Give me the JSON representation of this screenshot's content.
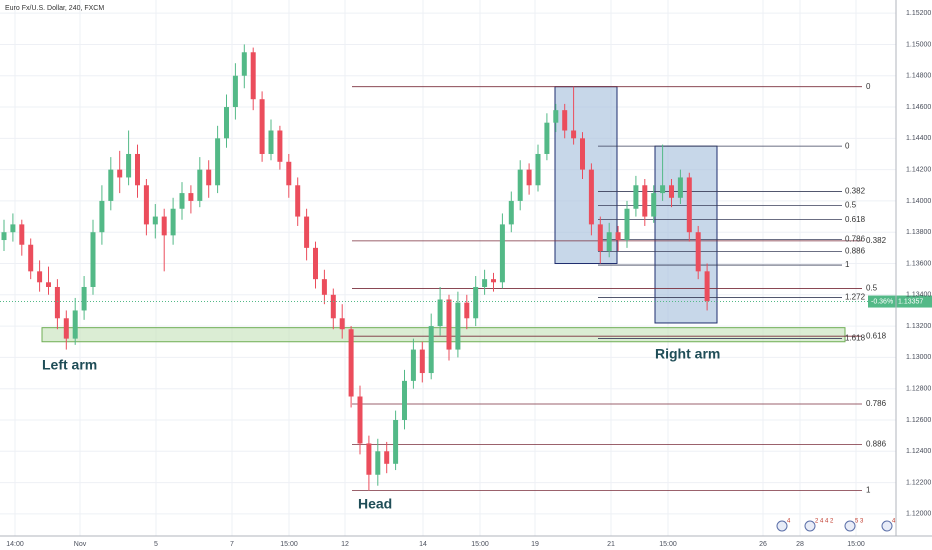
{
  "chart_data": {
    "type": "candlestick",
    "title": "Euro Fx/U.S. Dollar, 240, FXCM",
    "ylim": [
      1.11865,
      1.15284
    ],
    "yticks": [
      {
        "value": 1.12,
        "label": "1.12000"
      },
      {
        "value": 1.122,
        "label": "1.12200"
      },
      {
        "value": 1.124,
        "label": "1.12400"
      },
      {
        "value": 1.126,
        "label": "1.12600"
      },
      {
        "value": 1.128,
        "label": "1.12800"
      },
      {
        "value": 1.13,
        "label": "1.13000"
      },
      {
        "value": 1.132,
        "label": "1.13200"
      },
      {
        "value": 1.134,
        "label": "1.13400"
      },
      {
        "value": 1.136,
        "label": "1.13600"
      },
      {
        "value": 1.138,
        "label": "1.13800"
      },
      {
        "value": 1.14,
        "label": "1.14000"
      },
      {
        "value": 1.142,
        "label": "1.14200"
      },
      {
        "value": 1.144,
        "label": "1.14400"
      },
      {
        "value": 1.146,
        "label": "1.14600"
      },
      {
        "value": 1.148,
        "label": "1.14800"
      },
      {
        "value": 1.15,
        "label": "1.15000"
      },
      {
        "value": 1.152,
        "label": "1.15200"
      }
    ],
    "xtick_labels": [
      "14:00",
      "Nov",
      "5",
      "7",
      "15:00",
      "12",
      "14",
      "15:00",
      "19",
      "21",
      "15:00",
      "26",
      "28",
      "15:00"
    ],
    "grid": true,
    "up_color": "#53b987",
    "down_color": "#eb4d5c",
    "ohlc": [
      [
        1.1375,
        1.1388,
        1.1368,
        1.138
      ],
      [
        1.138,
        1.1392,
        1.1374,
        1.1385
      ],
      [
        1.1385,
        1.1388,
        1.1365,
        1.1372
      ],
      [
        1.1372,
        1.1376,
        1.135,
        1.1355
      ],
      [
        1.1355,
        1.1362,
        1.1342,
        1.1348
      ],
      [
        1.1348,
        1.1358,
        1.134,
        1.1345
      ],
      [
        1.1345,
        1.135,
        1.1318,
        1.1325
      ],
      [
        1.1325,
        1.133,
        1.1305,
        1.1312
      ],
      [
        1.1312,
        1.1338,
        1.1308,
        1.133
      ],
      [
        1.133,
        1.1352,
        1.1324,
        1.1345
      ],
      [
        1.1345,
        1.1388,
        1.134,
        1.138
      ],
      [
        1.138,
        1.141,
        1.1372,
        1.14
      ],
      [
        1.14,
        1.1428,
        1.1394,
        1.142
      ],
      [
        1.142,
        1.1432,
        1.1405,
        1.1415
      ],
      [
        1.1415,
        1.1445,
        1.141,
        1.143
      ],
      [
        1.143,
        1.1436,
        1.1402,
        1.141
      ],
      [
        1.141,
        1.1414,
        1.1378,
        1.1385
      ],
      [
        1.1385,
        1.1398,
        1.1376,
        1.139
      ],
      [
        1.139,
        1.1395,
        1.1355,
        1.1378
      ],
      [
        1.1378,
        1.1402,
        1.1372,
        1.1395
      ],
      [
        1.1395,
        1.1412,
        1.1388,
        1.1405
      ],
      [
        1.1405,
        1.141,
        1.1392,
        1.14
      ],
      [
        1.14,
        1.1428,
        1.1396,
        1.142
      ],
      [
        1.142,
        1.1426,
        1.1402,
        1.141
      ],
      [
        1.141,
        1.1448,
        1.1405,
        1.144
      ],
      [
        1.144,
        1.1468,
        1.1434,
        1.146
      ],
      [
        1.146,
        1.1488,
        1.1452,
        1.148
      ],
      [
        1.148,
        1.15,
        1.1472,
        1.1495
      ],
      [
        1.1495,
        1.1498,
        1.1458,
        1.1465
      ],
      [
        1.1465,
        1.147,
        1.1425,
        1.143
      ],
      [
        1.143,
        1.1452,
        1.1426,
        1.1445
      ],
      [
        1.1445,
        1.1448,
        1.142,
        1.1425
      ],
      [
        1.1425,
        1.143,
        1.1402,
        1.141
      ],
      [
        1.141,
        1.1415,
        1.1384,
        1.139
      ],
      [
        1.139,
        1.1395,
        1.1362,
        1.137
      ],
      [
        1.137,
        1.1374,
        1.1344,
        1.135
      ],
      [
        1.135,
        1.1356,
        1.1334,
        1.134
      ],
      [
        1.134,
        1.1344,
        1.1318,
        1.1325
      ],
      [
        1.1325,
        1.1334,
        1.1312,
        1.1318
      ],
      [
        1.1318,
        1.132,
        1.1268,
        1.1275
      ],
      [
        1.1275,
        1.1282,
        1.1238,
        1.1245
      ],
      [
        1.1245,
        1.125,
        1.1215,
        1.1225
      ],
      [
        1.1225,
        1.1248,
        1.1218,
        1.124
      ],
      [
        1.124,
        1.1246,
        1.1226,
        1.1232
      ],
      [
        1.1232,
        1.1266,
        1.1228,
        1.126
      ],
      [
        1.126,
        1.1292,
        1.1254,
        1.1285
      ],
      [
        1.1285,
        1.1312,
        1.128,
        1.1305
      ],
      [
        1.1305,
        1.131,
        1.1284,
        1.129
      ],
      [
        1.129,
        1.1328,
        1.1286,
        1.132
      ],
      [
        1.132,
        1.1345,
        1.1314,
        1.1337
      ],
      [
        1.1337,
        1.134,
        1.1298,
        1.1305
      ],
      [
        1.1305,
        1.1342,
        1.13,
        1.1335
      ],
      [
        1.1335,
        1.134,
        1.1318,
        1.1325
      ],
      [
        1.1325,
        1.1352,
        1.132,
        1.1345
      ],
      [
        1.1345,
        1.1356,
        1.134,
        1.135
      ],
      [
        1.135,
        1.1354,
        1.1342,
        1.1348
      ],
      [
        1.1348,
        1.1392,
        1.1344,
        1.1385
      ],
      [
        1.1385,
        1.1406,
        1.138,
        1.14
      ],
      [
        1.14,
        1.1426,
        1.1394,
        1.142
      ],
      [
        1.142,
        1.1424,
        1.1404,
        1.141
      ],
      [
        1.141,
        1.1436,
        1.1406,
        1.143
      ],
      [
        1.143,
        1.1456,
        1.1426,
        1.145
      ],
      [
        1.145,
        1.1462,
        1.1444,
        1.1458
      ],
      [
        1.1458,
        1.1462,
        1.144,
        1.1445
      ],
      [
        1.1445,
        1.1473,
        1.1436,
        1.144
      ],
      [
        1.144,
        1.1444,
        1.1414,
        1.142
      ],
      [
        1.142,
        1.1424,
        1.1378,
        1.1385
      ],
      [
        1.1385,
        1.139,
        1.136,
        1.1368
      ],
      [
        1.1368,
        1.1386,
        1.1364,
        1.138
      ],
      [
        1.138,
        1.1384,
        1.1368,
        1.1375
      ],
      [
        1.1375,
        1.14,
        1.137,
        1.1395
      ],
      [
        1.1395,
        1.1416,
        1.139,
        1.141
      ],
      [
        1.141,
        1.1414,
        1.1384,
        1.139
      ],
      [
        1.139,
        1.141,
        1.1386,
        1.1405
      ],
      [
        1.1405,
        1.1436,
        1.14,
        1.141
      ],
      [
        1.141,
        1.1414,
        1.1396,
        1.1402
      ],
      [
        1.1402,
        1.142,
        1.1398,
        1.1415
      ],
      [
        1.1415,
        1.1418,
        1.1374,
        1.138
      ],
      [
        1.138,
        1.1384,
        1.135,
        1.1355
      ],
      [
        1.1355,
        1.136,
        1.133,
        1.1336
      ]
    ],
    "last_price": {
      "value": 1.13357,
      "label": "1.13357"
    },
    "last_change": "-0.36%",
    "fibs": [
      {
        "from": 1.1473,
        "to": 1.1215,
        "color": "#7a2e3b",
        "levels": [
          0,
          0.382,
          0.5,
          0.618,
          0.786,
          0.886,
          1
        ]
      },
      {
        "from": 1.1435,
        "to": 1.1359,
        "color": "#3a3f5a",
        "levels": [
          0,
          0.382,
          0.5,
          0.618,
          0.786,
          0.886,
          1,
          1.272,
          1.618
        ]
      }
    ],
    "zones": [
      {
        "from": 1.1473,
        "to": 1.136,
        "color": "#a9c1dd"
      },
      {
        "from": 1.1435,
        "to": 1.1322,
        "color": "#a9c1dd"
      },
      {
        "from": 1.1319,
        "to": 1.131,
        "color": "#c8e4bd"
      }
    ],
    "annotations": [
      "Left arm",
      "Head",
      "Right arm"
    ],
    "event_badges": [
      "4",
      "2 4 4 2",
      "5 3",
      "4"
    ]
  }
}
